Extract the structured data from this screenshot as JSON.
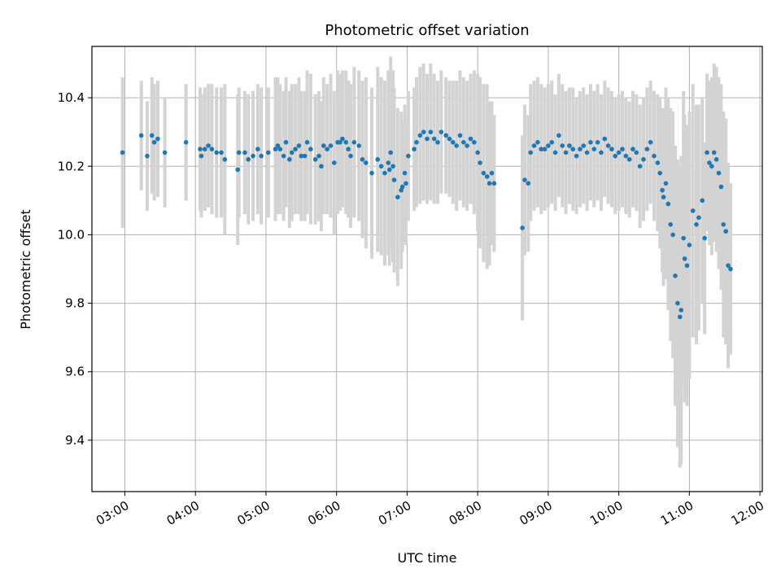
{
  "chart_data": {
    "type": "scatter",
    "title": "Photometric offset variation",
    "xlabel": "UTC time",
    "ylabel": "Photometric offset",
    "x_unit": "UTC hour",
    "xlim": [
      "02:32",
      "12:02"
    ],
    "ylim": [
      9.25,
      10.55
    ],
    "x_ticks": [
      "03:00",
      "04:00",
      "05:00",
      "06:00",
      "07:00",
      "08:00",
      "09:00",
      "10:00",
      "11:00",
      "12:00"
    ],
    "y_ticks": [
      "9.4",
      "9.6",
      "9.8",
      "10.0",
      "10.2",
      "10.4"
    ],
    "grid": true,
    "error_bars": true,
    "colors": {
      "points": "#1f77b4",
      "error_bars": "#d3d3d3",
      "grid": "#b0b0b0"
    },
    "series": [
      {
        "x": [
          "02:58",
          "03:14",
          "03:19",
          "03:23",
          "03:25",
          "03:28",
          "03:34",
          "03:52",
          "04:04",
          "04:05",
          "04:08",
          "04:11",
          "04:14",
          "04:18",
          "04:22",
          "04:25",
          "04:36",
          "04:37",
          "04:42",
          "04:45",
          "04:49",
          "04:53",
          "04:56",
          "05:02",
          "05:08",
          "05:10",
          "05:12",
          "05:15",
          "05:17",
          "05:20",
          "05:22",
          "05:25",
          "05:28",
          "05:30",
          "05:33",
          "05:35",
          "05:38",
          "05:42",
          "05:45",
          "05:47",
          "05:49",
          "05:52",
          "05:55",
          "05:58",
          "06:01",
          "06:03",
          "06:05",
          "06:08",
          "06:10",
          "06:12",
          "06:15",
          "06:19",
          "06:22",
          "06:25",
          "06:30",
          "06:35",
          "06:38",
          "06:41",
          "06:44",
          "06:45",
          "06:46",
          "06:48",
          "06:49",
          "06:52",
          "06:55",
          "06:56",
          "06:58",
          "06:59",
          "07:01",
          "07:06",
          "07:08",
          "07:11",
          "07:14",
          "07:17",
          "07:20",
          "07:23",
          "07:26",
          "07:29",
          "07:33",
          "07:36",
          "07:39",
          "07:42",
          "07:45",
          "07:48",
          "07:51",
          "07:54",
          "07:57",
          "08:00",
          "08:02",
          "08:05",
          "08:08",
          "08:10",
          "08:12",
          "08:14",
          "08:38",
          "08:40",
          "08:43",
          "08:45",
          "08:48",
          "08:51",
          "08:54",
          "08:57",
          "09:00",
          "09:03",
          "09:06",
          "09:09",
          "09:12",
          "09:15",
          "09:18",
          "09:21",
          "09:24",
          "09:27",
          "09:30",
          "09:33",
          "09:36",
          "09:39",
          "09:42",
          "09:45",
          "09:48",
          "09:51",
          "09:54",
          "09:57",
          "10:00",
          "10:03",
          "10:06",
          "10:09",
          "10:12",
          "10:15",
          "10:18",
          "10:21",
          "10:24",
          "10:27",
          "10:30",
          "10:33",
          "10:35",
          "10:37",
          "10:38",
          "10:40",
          "10:42",
          "10:44",
          "10:46",
          "10:48",
          "10:50",
          "10:52",
          "10:53",
          "10:55",
          "10:56",
          "10:58",
          "11:00",
          "11:03",
          "11:06",
          "11:08",
          "11:11",
          "11:13",
          "11:15",
          "11:17",
          "11:19",
          "11:21",
          "11:23",
          "11:25",
          "11:27",
          "11:29",
          "11:31",
          "11:33",
          "11:35"
        ],
        "y": [
          10.24,
          10.29,
          10.23,
          10.29,
          10.27,
          10.28,
          10.24,
          10.27,
          10.25,
          10.23,
          10.25,
          10.26,
          10.25,
          10.24,
          10.24,
          10.22,
          10.19,
          10.24,
          10.24,
          10.22,
          10.23,
          10.25,
          10.23,
          10.24,
          10.25,
          10.26,
          10.25,
          10.23,
          10.27,
          10.22,
          10.24,
          10.25,
          10.26,
          10.23,
          10.23,
          10.27,
          10.25,
          10.22,
          10.23,
          10.2,
          10.26,
          10.25,
          10.26,
          10.21,
          10.27,
          10.27,
          10.28,
          10.27,
          10.25,
          10.23,
          10.27,
          10.26,
          10.22,
          10.21,
          10.18,
          10.22,
          10.2,
          10.18,
          10.21,
          10.19,
          10.24,
          10.2,
          10.16,
          10.11,
          10.13,
          10.14,
          10.18,
          10.15,
          10.23,
          10.25,
          10.27,
          10.29,
          10.3,
          10.28,
          10.3,
          10.28,
          10.27,
          10.3,
          10.29,
          10.28,
          10.27,
          10.26,
          10.29,
          10.27,
          10.26,
          10.28,
          10.27,
          10.24,
          10.21,
          10.18,
          10.17,
          10.15,
          10.18,
          10.15,
          10.02,
          10.16,
          10.15,
          10.24,
          10.26,
          10.27,
          10.25,
          10.25,
          10.26,
          10.27,
          10.24,
          10.29,
          10.26,
          10.24,
          10.26,
          10.25,
          10.23,
          10.25,
          10.26,
          10.24,
          10.27,
          10.25,
          10.27,
          10.24,
          10.28,
          10.26,
          10.25,
          10.23,
          10.24,
          10.25,
          10.23,
          10.22,
          10.25,
          10.24,
          10.2,
          10.22,
          10.25,
          10.27,
          10.23,
          10.21,
          10.18,
          10.13,
          10.11,
          10.15,
          10.09,
          10.03,
          10.0,
          9.88,
          9.8,
          9.76,
          9.78,
          9.99,
          9.93,
          9.91,
          9.97,
          10.07,
          10.03,
          10.05,
          10.1,
          9.99,
          10.24,
          10.21,
          10.2,
          10.24,
          10.22,
          10.18,
          10.14,
          10.03,
          10.01,
          9.91,
          9.9
        ],
        "err": [
          0.22,
          0.16,
          0.16,
          0.17,
          0.17,
          0.17,
          0.16,
          0.17,
          0.18,
          0.18,
          0.18,
          0.18,
          0.19,
          0.19,
          0.19,
          0.22,
          0.22,
          0.19,
          0.18,
          0.19,
          0.19,
          0.19,
          0.2,
          0.19,
          0.21,
          0.2,
          0.19,
          0.19,
          0.19,
          0.2,
          0.2,
          0.19,
          0.2,
          0.19,
          0.19,
          0.21,
          0.22,
          0.19,
          0.19,
          0.19,
          0.2,
          0.19,
          0.21,
          0.21,
          0.21,
          0.2,
          0.2,
          0.21,
          0.2,
          0.21,
          0.22,
          0.22,
          0.23,
          0.25,
          0.25,
          0.27,
          0.26,
          0.27,
          0.27,
          0.28,
          0.28,
          0.28,
          0.27,
          0.26,
          0.23,
          0.19,
          0.2,
          0.18,
          0.19,
          0.18,
          0.19,
          0.2,
          0.2,
          0.19,
          0.2,
          0.19,
          0.18,
          0.18,
          0.17,
          0.17,
          0.18,
          0.19,
          0.19,
          0.19,
          0.19,
          0.19,
          0.21,
          0.23,
          0.25,
          0.26,
          0.27,
          0.24,
          0.21,
          0.2,
          0.27,
          0.22,
          0.2,
          0.2,
          0.19,
          0.19,
          0.19,
          0.18,
          0.18,
          0.18,
          0.17,
          0.18,
          0.18,
          0.18,
          0.17,
          0.18,
          0.17,
          0.17,
          0.17,
          0.17,
          0.17,
          0.17,
          0.17,
          0.17,
          0.17,
          0.17,
          0.17,
          0.17,
          0.17,
          0.17,
          0.17,
          0.17,
          0.17,
          0.17,
          0.18,
          0.18,
          0.18,
          0.18,
          0.19,
          0.2,
          0.22,
          0.24,
          0.26,
          0.28,
          0.31,
          0.34,
          0.36,
          0.38,
          0.42,
          0.44,
          0.45,
          0.43,
          0.42,
          0.41,
          0.39,
          0.37,
          0.35,
          0.33,
          0.3,
          0.28,
          0.23,
          0.24,
          0.26,
          0.26,
          0.27,
          0.28,
          0.3,
          0.33,
          0.33,
          0.3,
          0.25
        ]
      }
    ]
  }
}
